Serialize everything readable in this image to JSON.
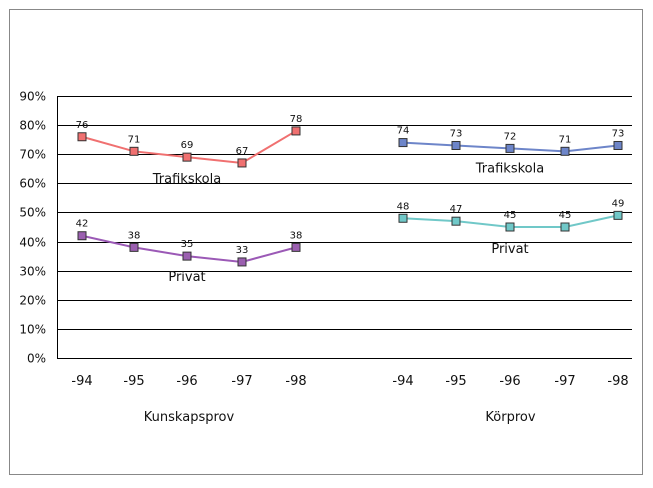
{
  "chart_data": {
    "type": "line",
    "y_axis": {
      "min": 0,
      "max": 90,
      "ticks": [
        "0%",
        "10%",
        "20%",
        "30%",
        "40%",
        "50%",
        "60%",
        "70%",
        "80%",
        "90%"
      ],
      "gridlines": true
    },
    "panels": [
      {
        "label": "Kunskapsprov",
        "categories": [
          "-94",
          "-95",
          "-96",
          "-97",
          "-98"
        ],
        "series": [
          {
            "name": "Trafikskola",
            "color": "#f07070",
            "marker_fill": "#f07070",
            "values": [
              76,
              71,
              69,
              67,
              78
            ]
          },
          {
            "name": "Privat",
            "color": "#9b59b6",
            "marker_fill": "#9b5fb0",
            "values": [
              42,
              38,
              35,
              33,
              38
            ]
          }
        ]
      },
      {
        "label": "Körprov",
        "categories": [
          "-94",
          "-95",
          "-96",
          "-97",
          "-98"
        ],
        "series": [
          {
            "name": "Trafikskola",
            "color": "#6d85c9",
            "marker_fill": "#6d85c9",
            "values": [
              74,
              73,
              72,
              71,
              73
            ]
          },
          {
            "name": "Privat",
            "color": "#70c8c8",
            "marker_fill": "#70c8c8",
            "values": [
              48,
              47,
              45,
              45,
              49
            ]
          }
        ]
      }
    ]
  }
}
